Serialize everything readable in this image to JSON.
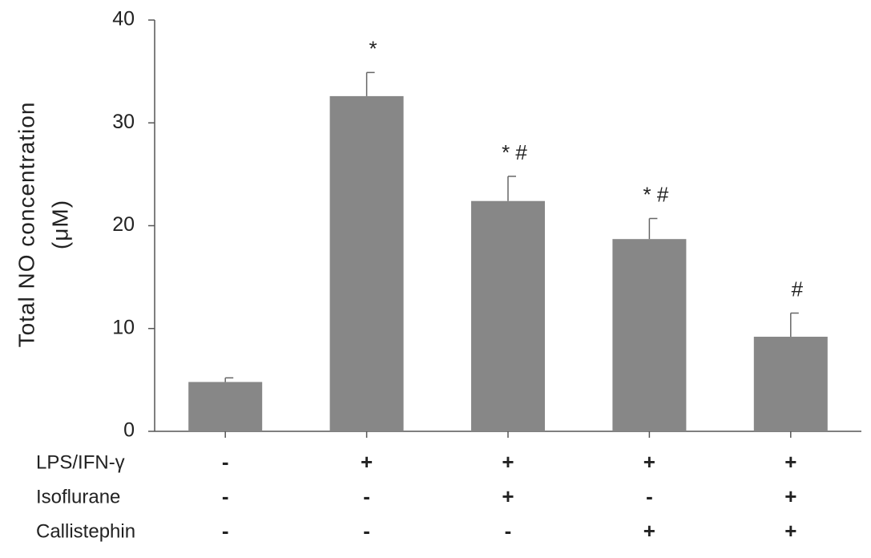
{
  "chart_data": {
    "type": "bar",
    "y_label": [
      "Total NO concentration",
      "(μM)"
    ],
    "categories": [
      null,
      null,
      null,
      null,
      null
    ],
    "values": [
      4.8,
      32.6,
      22.4,
      18.7,
      9.2
    ],
    "errors": [
      0.4,
      2.3,
      2.4,
      2.0,
      2.3
    ],
    "annotations": [
      null,
      "*",
      "* #",
      "* #",
      "#"
    ],
    "color": "#878787",
    "ylim": [
      0,
      40
    ],
    "yticks": [
      0,
      10,
      20,
      30,
      40
    ],
    "treatments": [
      {
        "name": "LPS/IFN-γ",
        "signs": [
          "-",
          "+",
          "+",
          "+",
          "+"
        ]
      },
      {
        "name": "Isoflurane",
        "signs": [
          "-",
          "-",
          "+",
          "-",
          "+"
        ]
      },
      {
        "name": "Callistephin",
        "signs": [
          "-",
          "-",
          "-",
          "+",
          "+"
        ]
      }
    ]
  }
}
